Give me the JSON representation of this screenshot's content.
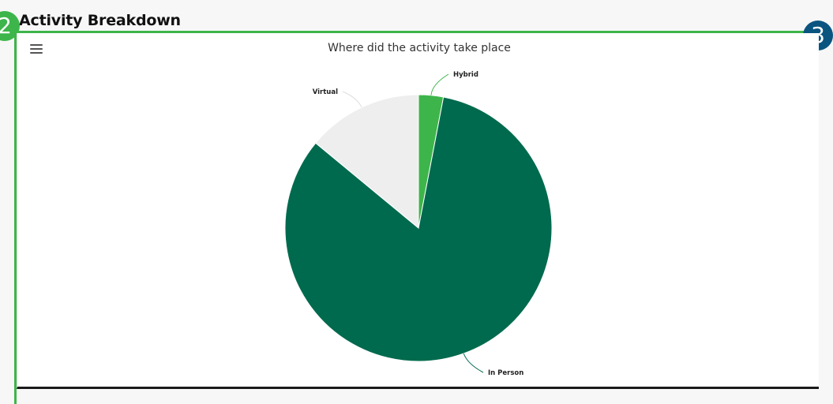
{
  "section": {
    "title": "Activity Breakdown",
    "step_badge_left": "2",
    "step_badge_right": "3"
  },
  "chart_menu": {
    "icon": "hamburger-menu-icon"
  },
  "chart_data": {
    "type": "pie",
    "title": "Where did the activity take place",
    "slices": [
      {
        "label": "Hybrid",
        "value": 3,
        "color": "#3db54a"
      },
      {
        "label": "In Person",
        "value": 83,
        "color": "#006a4e"
      },
      {
        "label": "Virtual",
        "value": 14,
        "color": "#eeeeee"
      }
    ],
    "legend": "none",
    "data_labels": "outside-with-connectors"
  }
}
